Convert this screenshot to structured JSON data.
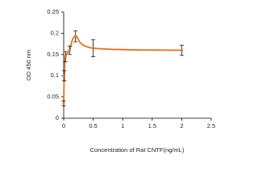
{
  "chart_data": {
    "type": "line",
    "x_label": "Concentration of Rat CNTF(ng/mL)",
    "y_label": "OD 450 nm",
    "x": [
      0,
      0.01,
      0.03,
      0.1,
      0.2,
      0.5,
      2
    ],
    "series": [
      {
        "color": "#e8731a",
        "values": [
          0.035,
          0.1,
          0.145,
          0.16,
          0.193,
          0.165,
          0.16
        ],
        "errors": [
          0.006,
          0.012,
          0.012,
          0.01,
          0.013,
          0.02,
          0.012
        ]
      }
    ],
    "xlim": [
      0,
      2.5
    ],
    "xticks": [
      0,
      0.5,
      1,
      1.5,
      2,
      2.5
    ],
    "ylim": [
      0,
      0.25
    ],
    "yticks": [
      0,
      0.05,
      0.1,
      0.15,
      0.2,
      0.25
    ],
    "grid": false
  }
}
